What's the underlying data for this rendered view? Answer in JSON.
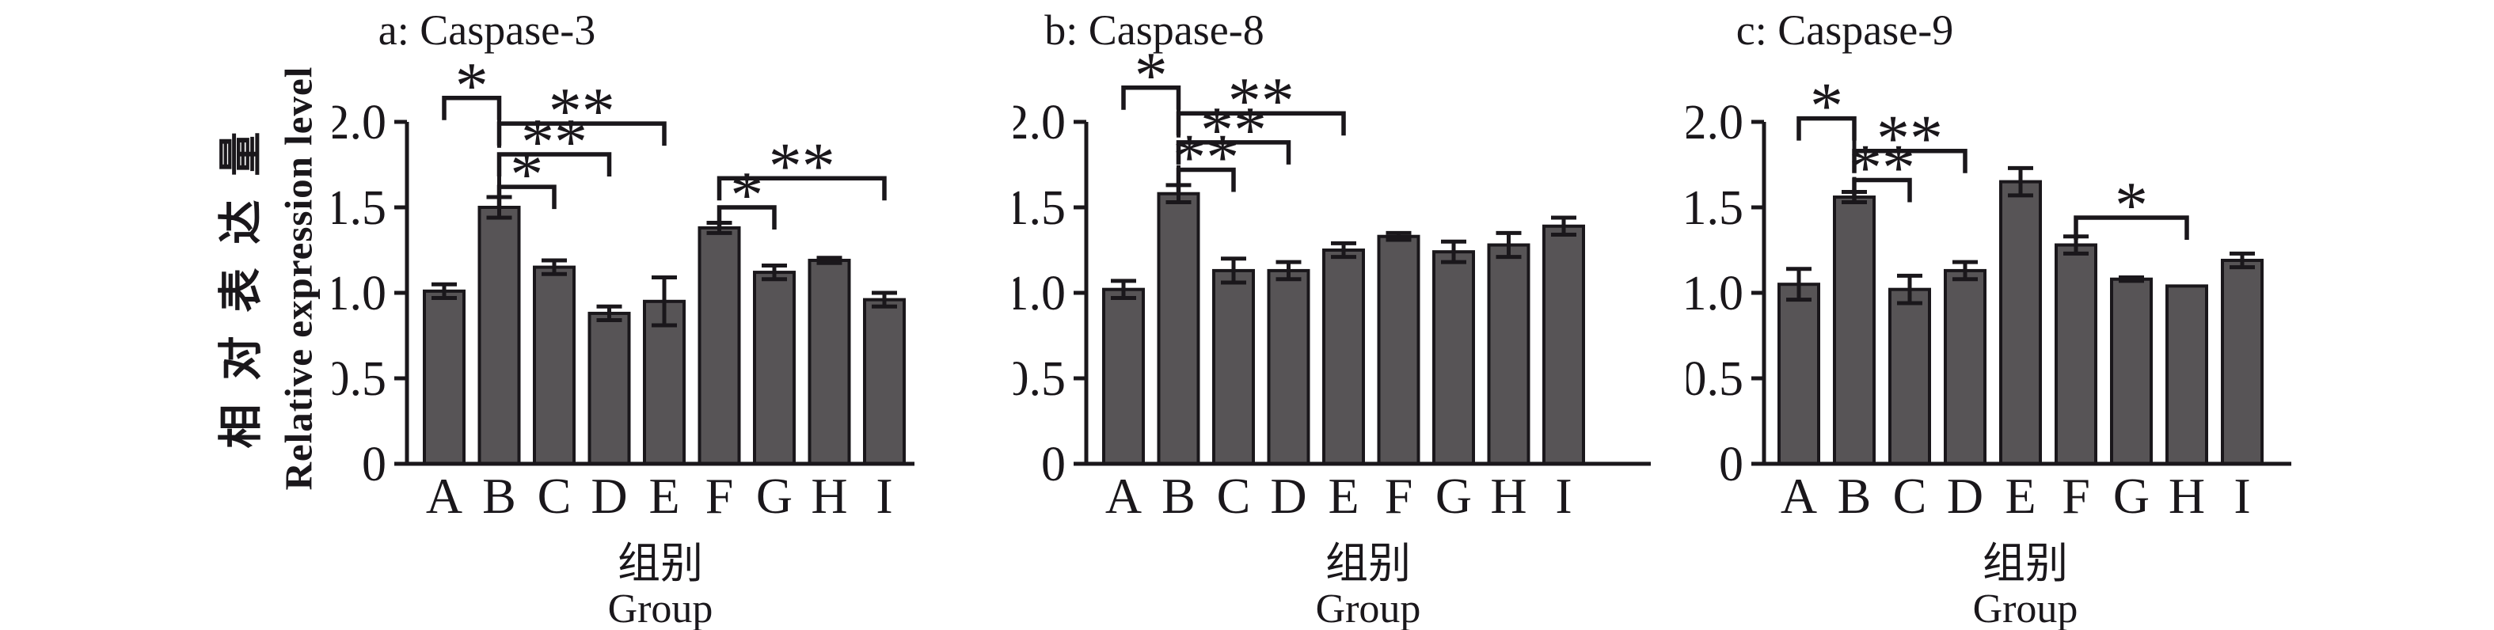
{
  "figure": {
    "description_visible_text_only": true
  },
  "y_axis": {
    "title_cn": "相对表达量",
    "title_en": "Relative expression level",
    "tick_labels": [
      "0",
      "0.5",
      "1.0",
      "1.5",
      "2.0"
    ],
    "tick_values": [
      0,
      0.5,
      1.0,
      1.5,
      2.0
    ],
    "ylim": [
      0,
      2.0
    ]
  },
  "x_axis": {
    "title_cn": "组别",
    "title_en": "Group"
  },
  "style": {
    "bar_fill": "#575456",
    "bar_stroke": "#1a171b",
    "axis_color": "#1a171b",
    "text_color": "#1a171b",
    "background": "#ffffff"
  },
  "chart_data": [
    {
      "type": "bar",
      "title": "a: Caspase-3",
      "panel": "a",
      "gene": "Caspase-3",
      "categories": [
        "A",
        "B",
        "C",
        "D",
        "E",
        "F",
        "G",
        "H",
        "I"
      ],
      "values": [
        1.01,
        1.5,
        1.15,
        0.88,
        0.95,
        1.38,
        1.12,
        1.19,
        0.96
      ],
      "errors": [
        0.04,
        0.06,
        0.04,
        0.04,
        0.14,
        0.03,
        0.04,
        0.015,
        0.04
      ],
      "ylim": [
        0,
        2.0
      ],
      "grid": false,
      "brackets": [
        {
          "group1": "A",
          "group2": "B",
          "label": "*",
          "height": 2.14
        },
        {
          "group1": "B",
          "group2": "E",
          "label": "**",
          "height": 1.99
        },
        {
          "group1": "B",
          "group2": "D",
          "label": "**",
          "height": 1.81
        },
        {
          "group1": "B",
          "group2": "C",
          "label": "*",
          "height": 1.62
        },
        {
          "group1": "F",
          "group2": "I",
          "label": "**",
          "height": 1.67
        },
        {
          "group1": "F",
          "group2": "G",
          "label": "*",
          "height": 1.5
        }
      ]
    },
    {
      "type": "bar",
      "title": "b: Caspase-8",
      "panel": "b",
      "gene": "Caspase-8",
      "categories": [
        "A",
        "B",
        "C",
        "D",
        "E",
        "F",
        "G",
        "H",
        "I"
      ],
      "values": [
        1.02,
        1.58,
        1.13,
        1.13,
        1.25,
        1.33,
        1.24,
        1.28,
        1.39
      ],
      "errors": [
        0.05,
        0.05,
        0.07,
        0.05,
        0.04,
        0.02,
        0.06,
        0.07,
        0.05
      ],
      "ylim": [
        0,
        2.0
      ],
      "grid": false,
      "brackets": [
        {
          "group1": "A",
          "group2": "B",
          "label": "*",
          "height": 2.2
        },
        {
          "group1": "B",
          "group2": "E",
          "label": "**",
          "height": 2.05
        },
        {
          "group1": "B",
          "group2": "D",
          "label": "**",
          "height": 1.88
        },
        {
          "group1": "B",
          "group2": "C",
          "label": "**",
          "height": 1.72
        }
      ]
    },
    {
      "type": "bar",
      "title": "c: Caspase-9",
      "panel": "c",
      "gene": "Caspase-9",
      "categories": [
        "A",
        "B",
        "C",
        "D",
        "E",
        "F",
        "G",
        "H",
        "I"
      ],
      "values": [
        1.05,
        1.56,
        1.02,
        1.13,
        1.65,
        1.28,
        1.08,
        1.04,
        1.19
      ],
      "errors": [
        0.09,
        0.03,
        0.08,
        0.05,
        0.08,
        0.05,
        0.01,
        0,
        0.04
      ],
      "ylim": [
        0,
        2.0
      ],
      "grid": false,
      "brackets": [
        {
          "group1": "A",
          "group2": "B",
          "label": "*",
          "height": 2.02
        },
        {
          "group1": "B",
          "group2": "D",
          "label": "**",
          "height": 1.83
        },
        {
          "group1": "B",
          "group2": "C",
          "label": "**",
          "height": 1.66
        },
        {
          "group1": "F",
          "group2": "H",
          "label": "*",
          "height": 1.44
        }
      ]
    }
  ]
}
